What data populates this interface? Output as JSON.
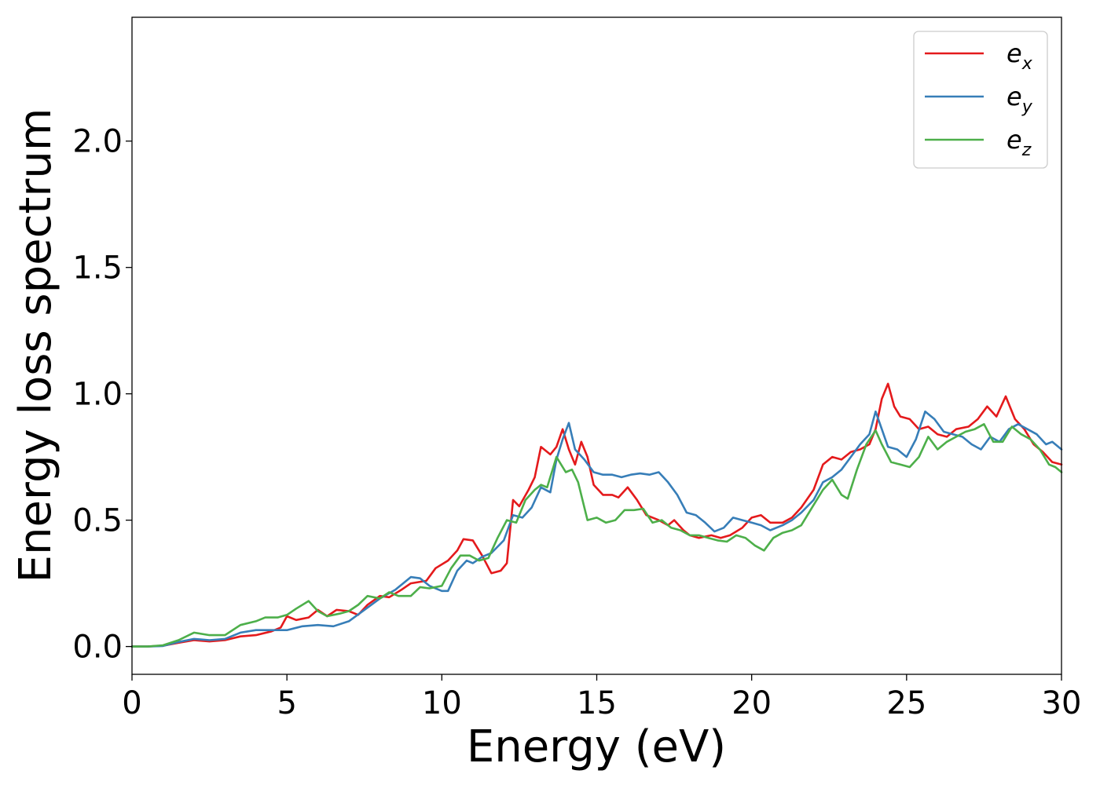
{
  "chart_data": {
    "type": "line",
    "xlabel": "Energy (eV)",
    "ylabel": "Energy loss spectrum",
    "xlim": [
      0,
      30
    ],
    "ylim": [
      -0.11,
      2.49
    ],
    "xticks": [
      "0",
      "5",
      "10",
      "15",
      "20",
      "25",
      "30"
    ],
    "yticks": [
      "0.0",
      "0.5",
      "1.0",
      "1.5",
      "2.0"
    ],
    "grid": false,
    "legend_position": "top-right",
    "series": [
      {
        "name": "e_x",
        "label_base": "e",
        "label_sub": "x",
        "color": "#e41a1c",
        "points": [
          [
            0,
            0.0
          ],
          [
            0.5,
            0.0
          ],
          [
            1.0,
            0.003
          ],
          [
            1.5,
            0.015
          ],
          [
            2.0,
            0.025
          ],
          [
            2.5,
            0.02
          ],
          [
            3.0,
            0.025
          ],
          [
            3.5,
            0.04
          ],
          [
            4.0,
            0.045
          ],
          [
            4.5,
            0.06
          ],
          [
            4.8,
            0.075
          ],
          [
            5.0,
            0.12
          ],
          [
            5.3,
            0.105
          ],
          [
            5.7,
            0.115
          ],
          [
            6.0,
            0.145
          ],
          [
            6.3,
            0.12
          ],
          [
            6.6,
            0.145
          ],
          [
            7.0,
            0.14
          ],
          [
            7.3,
            0.125
          ],
          [
            7.6,
            0.165
          ],
          [
            8.0,
            0.2
          ],
          [
            8.3,
            0.195
          ],
          [
            8.7,
            0.225
          ],
          [
            9.0,
            0.25
          ],
          [
            9.5,
            0.26
          ],
          [
            9.8,
            0.31
          ],
          [
            10.2,
            0.34
          ],
          [
            10.5,
            0.38
          ],
          [
            10.7,
            0.425
          ],
          [
            11.0,
            0.42
          ],
          [
            11.3,
            0.36
          ],
          [
            11.6,
            0.29
          ],
          [
            11.9,
            0.3
          ],
          [
            12.1,
            0.33
          ],
          [
            12.3,
            0.58
          ],
          [
            12.5,
            0.555
          ],
          [
            12.8,
            0.62
          ],
          [
            13.0,
            0.67
          ],
          [
            13.2,
            0.79
          ],
          [
            13.5,
            0.76
          ],
          [
            13.7,
            0.79
          ],
          [
            13.9,
            0.86
          ],
          [
            14.1,
            0.78
          ],
          [
            14.3,
            0.72
          ],
          [
            14.5,
            0.81
          ],
          [
            14.7,
            0.75
          ],
          [
            14.9,
            0.64
          ],
          [
            15.2,
            0.6
          ],
          [
            15.5,
            0.6
          ],
          [
            15.7,
            0.59
          ],
          [
            16.0,
            0.63
          ],
          [
            16.3,
            0.58
          ],
          [
            16.6,
            0.52
          ],
          [
            17.0,
            0.5
          ],
          [
            17.3,
            0.48
          ],
          [
            17.5,
            0.5
          ],
          [
            17.8,
            0.46
          ],
          [
            18.0,
            0.44
          ],
          [
            18.3,
            0.43
          ],
          [
            18.7,
            0.44
          ],
          [
            19.0,
            0.43
          ],
          [
            19.3,
            0.44
          ],
          [
            19.7,
            0.47
          ],
          [
            20.0,
            0.51
          ],
          [
            20.3,
            0.52
          ],
          [
            20.6,
            0.49
          ],
          [
            21.0,
            0.49
          ],
          [
            21.3,
            0.51
          ],
          [
            21.6,
            0.55
          ],
          [
            22.0,
            0.62
          ],
          [
            22.3,
            0.72
          ],
          [
            22.6,
            0.75
          ],
          [
            22.9,
            0.74
          ],
          [
            23.2,
            0.77
          ],
          [
            23.5,
            0.78
          ],
          [
            23.8,
            0.8
          ],
          [
            24.0,
            0.86
          ],
          [
            24.2,
            0.98
          ],
          [
            24.4,
            1.04
          ],
          [
            24.6,
            0.95
          ],
          [
            24.8,
            0.91
          ],
          [
            25.1,
            0.9
          ],
          [
            25.4,
            0.86
          ],
          [
            25.7,
            0.87
          ],
          [
            26.0,
            0.84
          ],
          [
            26.3,
            0.83
          ],
          [
            26.6,
            0.86
          ],
          [
            27.0,
            0.87
          ],
          [
            27.3,
            0.9
          ],
          [
            27.6,
            0.95
          ],
          [
            27.9,
            0.91
          ],
          [
            28.2,
            0.99
          ],
          [
            28.5,
            0.9
          ],
          [
            28.8,
            0.86
          ],
          [
            29.1,
            0.8
          ],
          [
            29.4,
            0.77
          ],
          [
            29.7,
            0.73
          ],
          [
            30.0,
            0.72
          ]
        ]
      },
      {
        "name": "e_y",
        "label_base": "e",
        "label_sub": "y",
        "color": "#377eb8",
        "points": [
          [
            0,
            0.0
          ],
          [
            0.5,
            0.0
          ],
          [
            1.0,
            0.002
          ],
          [
            1.5,
            0.018
          ],
          [
            2.0,
            0.03
          ],
          [
            2.5,
            0.025
          ],
          [
            3.0,
            0.03
          ],
          [
            3.5,
            0.055
          ],
          [
            4.0,
            0.065
          ],
          [
            4.5,
            0.065
          ],
          [
            5.0,
            0.065
          ],
          [
            5.5,
            0.08
          ],
          [
            6.0,
            0.085
          ],
          [
            6.5,
            0.08
          ],
          [
            7.0,
            0.1
          ],
          [
            7.5,
            0.145
          ],
          [
            8.0,
            0.19
          ],
          [
            8.5,
            0.225
          ],
          [
            9.0,
            0.275
          ],
          [
            9.3,
            0.27
          ],
          [
            9.6,
            0.24
          ],
          [
            10.0,
            0.22
          ],
          [
            10.2,
            0.22
          ],
          [
            10.5,
            0.3
          ],
          [
            10.8,
            0.34
          ],
          [
            11.0,
            0.33
          ],
          [
            11.3,
            0.355
          ],
          [
            11.6,
            0.37
          ],
          [
            12.0,
            0.42
          ],
          [
            12.3,
            0.52
          ],
          [
            12.6,
            0.51
          ],
          [
            12.9,
            0.55
          ],
          [
            13.2,
            0.63
          ],
          [
            13.5,
            0.61
          ],
          [
            13.7,
            0.74
          ],
          [
            13.9,
            0.82
          ],
          [
            14.1,
            0.885
          ],
          [
            14.3,
            0.78
          ],
          [
            14.6,
            0.74
          ],
          [
            14.9,
            0.69
          ],
          [
            15.2,
            0.68
          ],
          [
            15.5,
            0.68
          ],
          [
            15.8,
            0.67
          ],
          [
            16.1,
            0.68
          ],
          [
            16.4,
            0.685
          ],
          [
            16.7,
            0.68
          ],
          [
            17.0,
            0.69
          ],
          [
            17.3,
            0.65
          ],
          [
            17.6,
            0.6
          ],
          [
            17.9,
            0.53
          ],
          [
            18.2,
            0.52
          ],
          [
            18.5,
            0.49
          ],
          [
            18.8,
            0.455
          ],
          [
            19.1,
            0.47
          ],
          [
            19.4,
            0.51
          ],
          [
            19.7,
            0.5
          ],
          [
            20.0,
            0.49
          ],
          [
            20.3,
            0.48
          ],
          [
            20.6,
            0.46
          ],
          [
            21.0,
            0.48
          ],
          [
            21.3,
            0.5
          ],
          [
            21.6,
            0.53
          ],
          [
            22.0,
            0.58
          ],
          [
            22.3,
            0.65
          ],
          [
            22.6,
            0.67
          ],
          [
            22.9,
            0.7
          ],
          [
            23.2,
            0.75
          ],
          [
            23.5,
            0.8
          ],
          [
            23.8,
            0.84
          ],
          [
            24.0,
            0.93
          ],
          [
            24.2,
            0.86
          ],
          [
            24.4,
            0.79
          ],
          [
            24.7,
            0.78
          ],
          [
            25.0,
            0.75
          ],
          [
            25.3,
            0.82
          ],
          [
            25.6,
            0.93
          ],
          [
            25.9,
            0.9
          ],
          [
            26.2,
            0.85
          ],
          [
            26.5,
            0.84
          ],
          [
            26.8,
            0.83
          ],
          [
            27.1,
            0.8
          ],
          [
            27.4,
            0.78
          ],
          [
            27.7,
            0.83
          ],
          [
            28.0,
            0.81
          ],
          [
            28.3,
            0.86
          ],
          [
            28.6,
            0.88
          ],
          [
            28.9,
            0.86
          ],
          [
            29.2,
            0.84
          ],
          [
            29.5,
            0.8
          ],
          [
            29.7,
            0.81
          ],
          [
            30.0,
            0.78
          ]
        ]
      },
      {
        "name": "e_z",
        "label_base": "e",
        "label_sub": "z",
        "color": "#4daf4a",
        "points": [
          [
            0,
            0.0
          ],
          [
            0.5,
            0.0
          ],
          [
            1.0,
            0.005
          ],
          [
            1.5,
            0.025
          ],
          [
            2.0,
            0.055
          ],
          [
            2.5,
            0.045
          ],
          [
            3.0,
            0.045
          ],
          [
            3.5,
            0.085
          ],
          [
            4.0,
            0.1
          ],
          [
            4.3,
            0.115
          ],
          [
            4.7,
            0.115
          ],
          [
            5.0,
            0.125
          ],
          [
            5.3,
            0.15
          ],
          [
            5.7,
            0.18
          ],
          [
            6.0,
            0.14
          ],
          [
            6.3,
            0.12
          ],
          [
            6.7,
            0.13
          ],
          [
            7.0,
            0.14
          ],
          [
            7.3,
            0.165
          ],
          [
            7.6,
            0.2
          ],
          [
            8.0,
            0.19
          ],
          [
            8.3,
            0.215
          ],
          [
            8.6,
            0.2
          ],
          [
            9.0,
            0.2
          ],
          [
            9.3,
            0.235
          ],
          [
            9.6,
            0.23
          ],
          [
            10.0,
            0.24
          ],
          [
            10.3,
            0.31
          ],
          [
            10.6,
            0.36
          ],
          [
            10.9,
            0.36
          ],
          [
            11.2,
            0.34
          ],
          [
            11.5,
            0.35
          ],
          [
            11.8,
            0.43
          ],
          [
            12.1,
            0.5
          ],
          [
            12.4,
            0.49
          ],
          [
            12.7,
            0.58
          ],
          [
            13.0,
            0.62
          ],
          [
            13.2,
            0.64
          ],
          [
            13.4,
            0.63
          ],
          [
            13.7,
            0.75
          ],
          [
            14.0,
            0.69
          ],
          [
            14.2,
            0.7
          ],
          [
            14.4,
            0.65
          ],
          [
            14.7,
            0.5
          ],
          [
            15.0,
            0.51
          ],
          [
            15.3,
            0.49
          ],
          [
            15.6,
            0.5
          ],
          [
            15.9,
            0.54
          ],
          [
            16.2,
            0.54
          ],
          [
            16.5,
            0.545
          ],
          [
            16.8,
            0.49
          ],
          [
            17.1,
            0.5
          ],
          [
            17.4,
            0.47
          ],
          [
            17.7,
            0.46
          ],
          [
            18.0,
            0.44
          ],
          [
            18.3,
            0.44
          ],
          [
            18.6,
            0.43
          ],
          [
            18.9,
            0.42
          ],
          [
            19.2,
            0.415
          ],
          [
            19.5,
            0.44
          ],
          [
            19.8,
            0.43
          ],
          [
            20.1,
            0.4
          ],
          [
            20.4,
            0.38
          ],
          [
            20.7,
            0.43
          ],
          [
            21.0,
            0.45
          ],
          [
            21.3,
            0.46
          ],
          [
            21.6,
            0.48
          ],
          [
            22.0,
            0.56
          ],
          [
            22.3,
            0.62
          ],
          [
            22.6,
            0.66
          ],
          [
            22.9,
            0.6
          ],
          [
            23.1,
            0.585
          ],
          [
            23.4,
            0.7
          ],
          [
            23.7,
            0.8
          ],
          [
            24.0,
            0.855
          ],
          [
            24.2,
            0.8
          ],
          [
            24.5,
            0.73
          ],
          [
            24.8,
            0.72
          ],
          [
            25.1,
            0.71
          ],
          [
            25.4,
            0.75
          ],
          [
            25.7,
            0.83
          ],
          [
            26.0,
            0.78
          ],
          [
            26.3,
            0.81
          ],
          [
            26.6,
            0.83
          ],
          [
            26.9,
            0.85
          ],
          [
            27.2,
            0.86
          ],
          [
            27.5,
            0.88
          ],
          [
            27.8,
            0.81
          ],
          [
            28.1,
            0.81
          ],
          [
            28.4,
            0.87
          ],
          [
            28.7,
            0.84
          ],
          [
            29.0,
            0.82
          ],
          [
            29.3,
            0.78
          ],
          [
            29.6,
            0.72
          ],
          [
            29.8,
            0.71
          ],
          [
            30.0,
            0.69
          ]
        ]
      }
    ]
  }
}
